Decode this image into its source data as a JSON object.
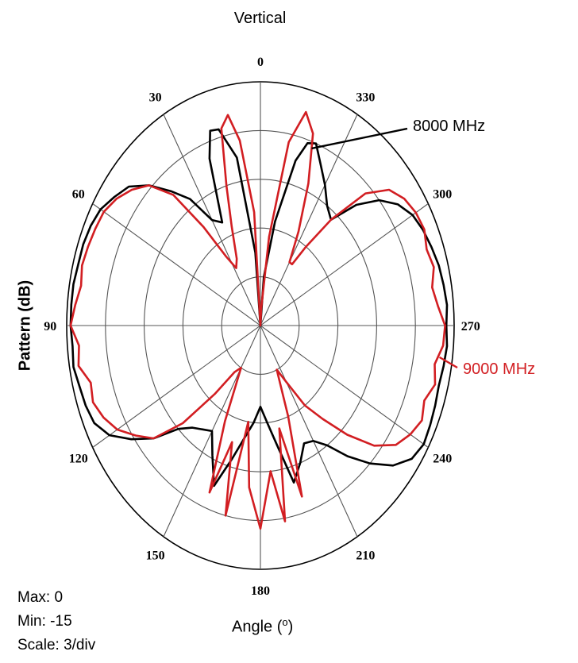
{
  "chart_data": {
    "type": "polar",
    "title": "Vertical",
    "ylabel": "Pattern (dB)",
    "xlabel": "Angle (°)",
    "xlabel_base": "Angle (",
    "xlabel_sup": "o",
    "xlabel_end": ")",
    "angle_ticks": [
      "0",
      "330",
      "300",
      "270",
      "240",
      "210",
      "180",
      "150",
      "120",
      "90",
      "60",
      "30"
    ],
    "angle_tick_degrees": [
      0,
      330,
      300,
      270,
      240,
      210,
      180,
      150,
      120,
      90,
      60,
      30
    ],
    "angle_direction": "angle increases counter-clockwise from top (0 at top, 90 on left, 270 on right)",
    "r_range_db": [
      -15,
      0
    ],
    "r_scale_db_per_div": 3,
    "rings": 5,
    "info": {
      "max": "Max: 0",
      "min": "Min: -15",
      "scale": "Scale: 3/div"
    },
    "series": [
      {
        "name": "8000 MHz",
        "color": "#000000",
        "angles": [
          0,
          5,
          10,
          15,
          18,
          21,
          25,
          30,
          35,
          40,
          45,
          50,
          55,
          60,
          65,
          70,
          75,
          80,
          85,
          90,
          95,
          100,
          105,
          110,
          115,
          120,
          125,
          130,
          135,
          140,
          145,
          150,
          155,
          160,
          165,
          170,
          175,
          180,
          185,
          190,
          195,
          200,
          205,
          210,
          215,
          220,
          225,
          230,
          235,
          240,
          245,
          250,
          255,
          260,
          265,
          270,
          275,
          280,
          285,
          290,
          295,
          300,
          305,
          310,
          315,
          320,
          325,
          330,
          335,
          339,
          342,
          345,
          350,
          355
        ],
        "values": [
          -15,
          -10.5,
          -4.5,
          -2.5,
          -2.4,
          -4,
          -8,
          -7.5,
          -5.5,
          -4.2,
          -2.8,
          -1.7,
          -1.2,
          -0.7,
          -0.5,
          -0.4,
          -0.4,
          -0.3,
          -0.3,
          -0.3,
          -0.4,
          -0.3,
          -0.5,
          -0.6,
          -0.8,
          -1.5,
          -2.8,
          -4.2,
          -6.0,
          -6.8,
          -7.2,
          -7.5,
          -6.2,
          -4.5,
          -6.5,
          -8.0,
          -9.0,
          -10.0,
          -9.0,
          -7.5,
          -5.0,
          -6.0,
          -7.0,
          -6.8,
          -6.0,
          -4.5,
          -3.0,
          -1.6,
          -0.7,
          -0.4,
          -0.5,
          -0.6,
          -0.7,
          -0.6,
          -0.5,
          -0.6,
          -0.5,
          -0.6,
          -0.7,
          -0.9,
          -1.1,
          -1.4,
          -2.0,
          -3.0,
          -4.5,
          -6.5,
          -6.0,
          -5.0,
          -4.0,
          -3.0,
          -3.2,
          -4.5,
          -8.5,
          -12.0
        ]
      },
      {
        "name": "9000 MHz",
        "color": "#d21e22",
        "angles": [
          0,
          4,
          8,
          11,
          14,
          17,
          20,
          24,
          28,
          32,
          36,
          40,
          45,
          50,
          55,
          60,
          65,
          70,
          75,
          80,
          85,
          90,
          95,
          100,
          105,
          110,
          115,
          120,
          125,
          130,
          135,
          140,
          145,
          150,
          155,
          159,
          163,
          167,
          171,
          175,
          180,
          185,
          189,
          193,
          197,
          201,
          205,
          210,
          215,
          220,
          225,
          230,
          235,
          240,
          245,
          250,
          255,
          260,
          265,
          270,
          275,
          280,
          285,
          290,
          295,
          300,
          305,
          310,
          315,
          320,
          324,
          327,
          330,
          333,
          337,
          341,
          345,
          349,
          353,
          357
        ],
        "values": [
          -15,
          -8,
          -3.5,
          -1.8,
          -2.5,
          -6,
          -8.5,
          -10.5,
          -11,
          -10,
          -7.5,
          -4.5,
          -2.8,
          -2.0,
          -1.4,
          -1.0,
          -0.9,
          -0.8,
          -0.7,
          -0.9,
          -0.6,
          -0.3,
          -0.9,
          -0.7,
          -1.4,
          -1.2,
          -1.6,
          -2.2,
          -3.2,
          -4.2,
          -6.5,
          -9.5,
          -11.5,
          -12.0,
          -8.5,
          -4.0,
          -7.5,
          -3.0,
          -9.0,
          -5.0,
          -2.5,
          -6.0,
          -2.8,
          -8.5,
          -4.0,
          -9.0,
          -12.0,
          -11.0,
          -9.0,
          -7.5,
          -5.5,
          -3.5,
          -2.2,
          -1.6,
          -1.2,
          -1.5,
          -1.0,
          -1.3,
          -0.8,
          -0.7,
          -1.2,
          -1.5,
          -1.1,
          -1.3,
          -1.0,
          -1.1,
          -1.4,
          -2.0,
          -3.5,
          -6.5,
          -9.0,
          -10.5,
          -10.5,
          -8.5,
          -5.5,
          -2.5,
          -1.4,
          -3.5,
          -9.5,
          -14.0
        ]
      }
    ],
    "annotations": [
      {
        "text": "8000 MHz",
        "color": "#000000",
        "series": "8000 MHz",
        "pointer_angle_deg": 340,
        "pointer_value_db": -3.4
      },
      {
        "text": "9000 MHz",
        "color": "#d21e22",
        "series": "9000 MHz",
        "pointer_angle_deg": 262,
        "pointer_value_db": -1.0
      }
    ],
    "grid": true
  }
}
